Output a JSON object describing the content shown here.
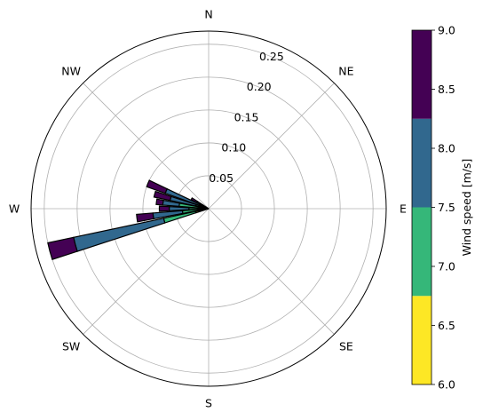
{
  "chart_data": {
    "type": "windrose",
    "title": "",
    "directions": [
      "N",
      "NE",
      "E",
      "SE",
      "S",
      "SW",
      "W",
      "NW"
    ],
    "radial_ticks": [
      0.05,
      0.1,
      0.15,
      0.2,
      0.25
    ],
    "radial_tick_labels": [
      "0.05",
      "0.10",
      "0.15",
      "0.20",
      "0.25"
    ],
    "rmax": 0.27,
    "colorbar": {
      "label": "Wind speed [m/s]",
      "ticks": [
        "6.0",
        "6.5",
        "7.0",
        "7.5",
        "8.0",
        "8.5",
        "9.0"
      ],
      "range": [
        6.0,
        9.0
      ],
      "bins": [
        {
          "from": 6.0,
          "to": 6.75,
          "color": "#fde725"
        },
        {
          "from": 6.75,
          "to": 7.5,
          "color": "#35b779"
        },
        {
          "from": 7.5,
          "to": 8.25,
          "color": "#31688e"
        },
        {
          "from": 8.25,
          "to": 9.0,
          "color": "#440154"
        }
      ]
    },
    "bars": [
      {
        "direction_deg": 255,
        "cumulative": [
          0.02,
          0.07,
          0.21,
          0.25
        ]
      },
      {
        "direction_deg": 262.5,
        "cumulative": [
          0.015,
          0.04,
          0.085,
          0.11
        ]
      },
      {
        "direction_deg": 270,
        "cumulative": [
          0.01,
          0.03,
          0.06,
          0.075
        ]
      },
      {
        "direction_deg": 277.5,
        "cumulative": [
          0.01,
          0.045,
          0.07,
          0.08
        ]
      },
      {
        "direction_deg": 285,
        "cumulative": [
          0.008,
          0.02,
          0.06,
          0.085
        ]
      },
      {
        "direction_deg": 292.5,
        "cumulative": [
          0.005,
          0.015,
          0.07,
          0.1
        ]
      },
      {
        "direction_deg": 300,
        "cumulative": [
          0.004,
          0.01,
          0.02,
          0.03
        ]
      }
    ]
  }
}
